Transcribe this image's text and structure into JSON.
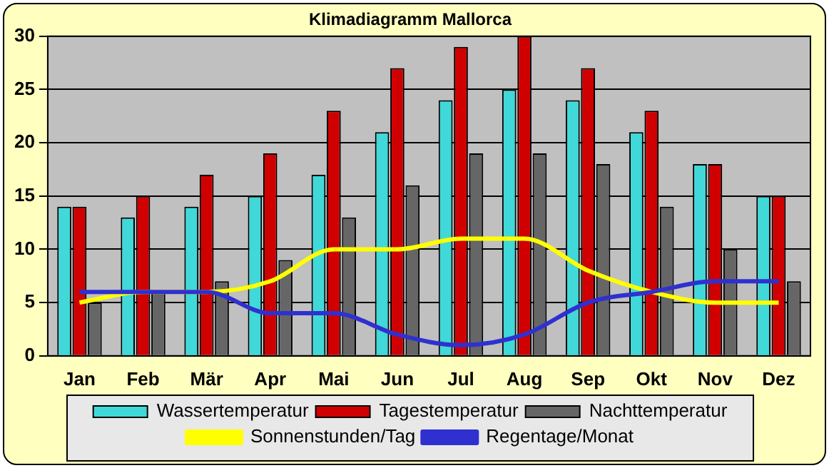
{
  "chart_data": {
    "type": "bar",
    "title": "Klimadiagramm Mallorca",
    "categories": [
      "Jan",
      "Feb",
      "Mär",
      "Apr",
      "Mai",
      "Jun",
      "Jul",
      "Aug",
      "Sep",
      "Okt",
      "Nov",
      "Dez"
    ],
    "series": [
      {
        "name": "Wassertemperatur",
        "color": "#40d8d8",
        "values": [
          14,
          13,
          14,
          15,
          17,
          21,
          24,
          25,
          24,
          21,
          18,
          15
        ]
      },
      {
        "name": "Tagestemperatur",
        "color": "#d00000",
        "values": [
          14,
          15,
          17,
          19,
          23,
          27,
          29,
          30,
          27,
          23,
          18,
          15
        ]
      },
      {
        "name": "Nachttemperatur",
        "color": "#666666",
        "values": [
          5,
          6,
          7,
          9,
          13,
          16,
          19,
          19,
          18,
          14,
          10,
          7
        ]
      },
      {
        "name": "Sonnenstunden/Tag",
        "type": "line",
        "color": "#ffff00",
        "values": [
          5,
          6,
          6,
          7,
          10,
          10,
          11,
          11,
          8,
          6,
          5,
          5
        ]
      },
      {
        "name": "Regentage/Monat",
        "type": "line",
        "color": "#3030d0",
        "values": [
          6,
          6,
          6,
          4,
          4,
          2,
          1,
          2,
          5,
          6,
          7,
          7
        ]
      }
    ],
    "ylim": [
      0,
      30
    ],
    "yticks": [
      0,
      5,
      10,
      15,
      20,
      25,
      30
    ],
    "grid": "y",
    "legend": "bottom",
    "marker": "none"
  }
}
